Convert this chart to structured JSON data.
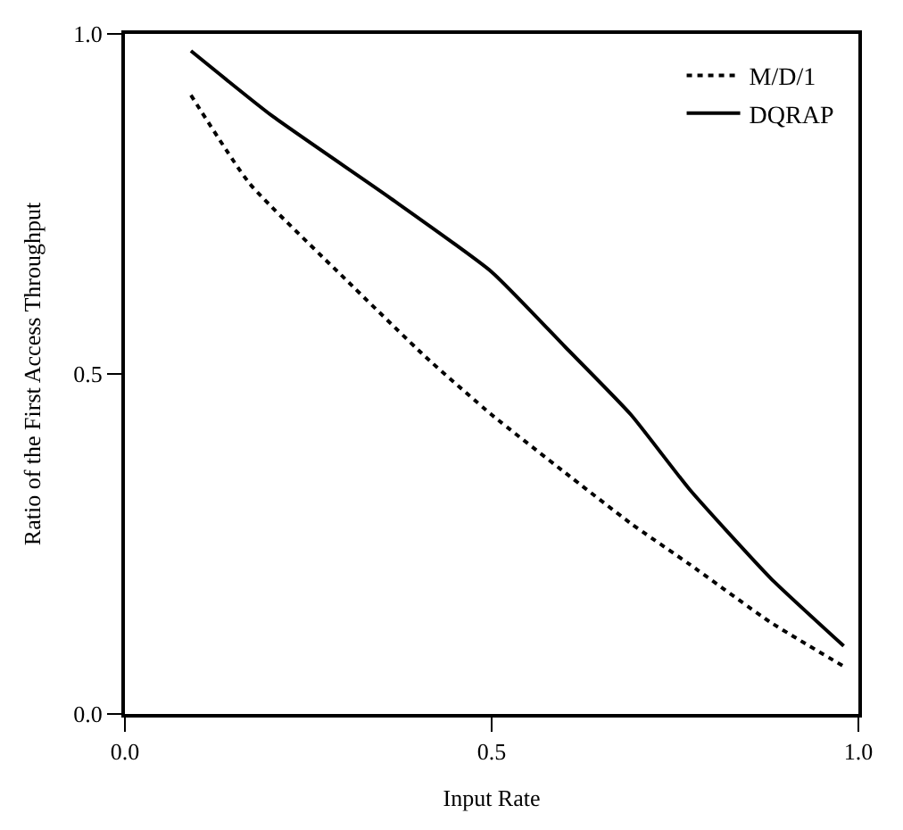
{
  "chart_data": {
    "type": "line",
    "xlabel": "Input Rate",
    "ylabel": "Ratio of the First Access Throughput",
    "xlim": [
      0,
      1
    ],
    "ylim": [
      0,
      1
    ],
    "xticks": [
      {
        "value": 0,
        "label": "0.0"
      },
      {
        "value": 0.5,
        "label": "0.5"
      },
      {
        "value": 1,
        "label": "1.0"
      }
    ],
    "yticks": [
      {
        "value": 0,
        "label": "0.0"
      },
      {
        "value": 0.5,
        "label": "0.5"
      },
      {
        "value": 1,
        "label": "1.0"
      }
    ],
    "legend": "top right",
    "marker": "none",
    "series": [
      {
        "name": "M/D/1",
        "color": "#000000",
        "line_style": "dotted",
        "x": [
          0.09,
          0.17,
          0.3,
          0.41,
          0.5,
          0.6,
          0.69,
          0.77,
          0.88,
          0.98
        ],
        "values": [
          0.91,
          0.78,
          0.64,
          0.525,
          0.44,
          0.355,
          0.28,
          0.22,
          0.135,
          0.07
        ]
      },
      {
        "name": "DQRAP",
        "color": "#000000",
        "line_style": "solid",
        "x": [
          0.09,
          0.2,
          0.36,
          0.5,
          0.6,
          0.69,
          0.77,
          0.88,
          0.98
        ],
        "values": [
          0.975,
          0.88,
          0.76,
          0.65,
          0.54,
          0.44,
          0.33,
          0.2,
          0.1
        ]
      }
    ]
  }
}
